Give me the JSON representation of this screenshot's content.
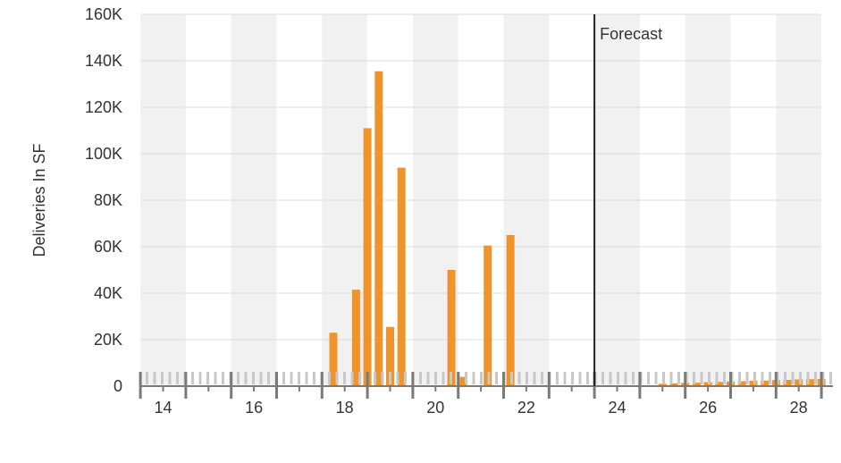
{
  "chart_data": {
    "type": "bar",
    "ylabel": "Deliveries In SF",
    "xlabel": "",
    "title": "",
    "ylim": [
      0,
      160000
    ],
    "xlim": [
      13.5,
      28.7
    ],
    "y_ticks": [
      0,
      20000,
      40000,
      60000,
      80000,
      100000,
      120000,
      140000,
      160000
    ],
    "y_tick_labels": [
      "0",
      "20K",
      "40K",
      "60K",
      "80K",
      "100K",
      "120K",
      "140K",
      "160K"
    ],
    "x_ticks": [
      14,
      16,
      18,
      20,
      22,
      24,
      26,
      28
    ],
    "x_tick_labels": [
      "14",
      "16",
      "18",
      "20",
      "22",
      "24",
      "26",
      "28"
    ],
    "grid": true,
    "shaded_bands": [
      [
        13.5,
        14.5
      ],
      [
        15.5,
        16.5
      ],
      [
        17.5,
        18.5
      ],
      [
        19.5,
        20.5
      ],
      [
        21.5,
        22.5
      ],
      [
        23.5,
        24.5
      ],
      [
        25.5,
        26.5
      ],
      [
        27.5,
        28.5
      ]
    ],
    "forecast_line_x": 23.5,
    "annotations": [
      {
        "text": "Forecast",
        "x": 23.5
      }
    ],
    "series": [
      {
        "color": "#f0932b",
        "x": [
          17.75,
          18.25,
          18.5,
          18.75,
          19.0,
          19.25,
          20.35,
          20.6,
          21.15,
          21.65,
          25.0,
          25.25,
          25.5,
          25.75,
          26.0,
          26.25,
          26.5,
          26.75,
          27.0,
          27.25,
          27.5,
          27.75,
          28.0,
          28.25,
          28.5
        ],
        "values": [
          23000,
          41500,
          111000,
          135500,
          25500,
          94000,
          50000,
          4000,
          60500,
          65000,
          1000,
          1200,
          1400,
          1500,
          1700,
          1800,
          2000,
          2100,
          2300,
          2400,
          2600,
          2700,
          2900,
          3000,
          3100
        ]
      }
    ]
  }
}
